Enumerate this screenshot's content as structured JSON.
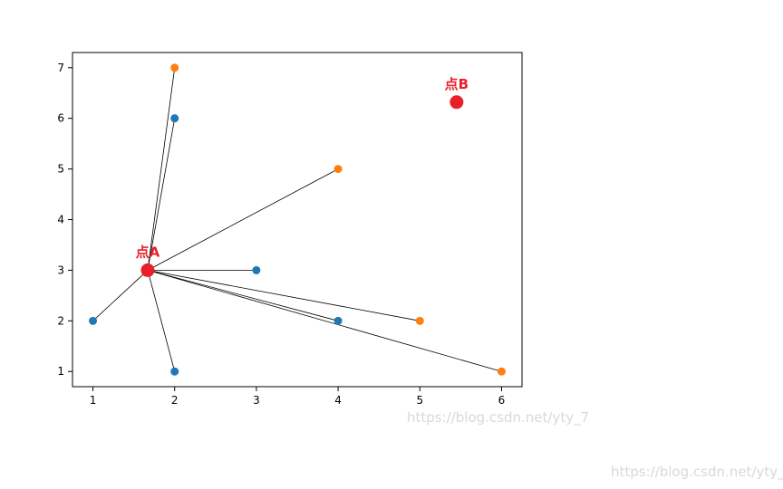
{
  "chart_data": {
    "type": "scatter",
    "xlim": [
      0.75,
      6.25
    ],
    "ylim": [
      0.7,
      7.3
    ],
    "x_ticks": [
      1,
      2,
      3,
      4,
      5,
      6
    ],
    "y_ticks": [
      1,
      2,
      3,
      4,
      5,
      6,
      7
    ],
    "grid": false,
    "series": [
      {
        "color": "#1f77b4",
        "points": [
          {
            "x": 1,
            "y": 2
          },
          {
            "x": 2,
            "y": 1
          },
          {
            "x": 2,
            "y": 6
          },
          {
            "x": 3,
            "y": 3
          },
          {
            "x": 4,
            "y": 2
          }
        ]
      },
      {
        "color": "#ff7f0e",
        "points": [
          {
            "x": 2,
            "y": 7
          },
          {
            "x": 4,
            "y": 5
          },
          {
            "x": 5,
            "y": 2
          },
          {
            "x": 6,
            "y": 1
          }
        ]
      }
    ],
    "highlight_color": "#e8202a",
    "special_points": [
      {
        "label": "点A",
        "x": 1.67,
        "y": 3.0
      },
      {
        "label": "点B",
        "x": 5.45,
        "y": 6.32
      }
    ],
    "connections_from": "点A",
    "connection_color": "#000000"
  },
  "watermarks": [
    "https://blog.csdn.net/yty_7",
    "https://blog.csdn.net/yty_7"
  ]
}
